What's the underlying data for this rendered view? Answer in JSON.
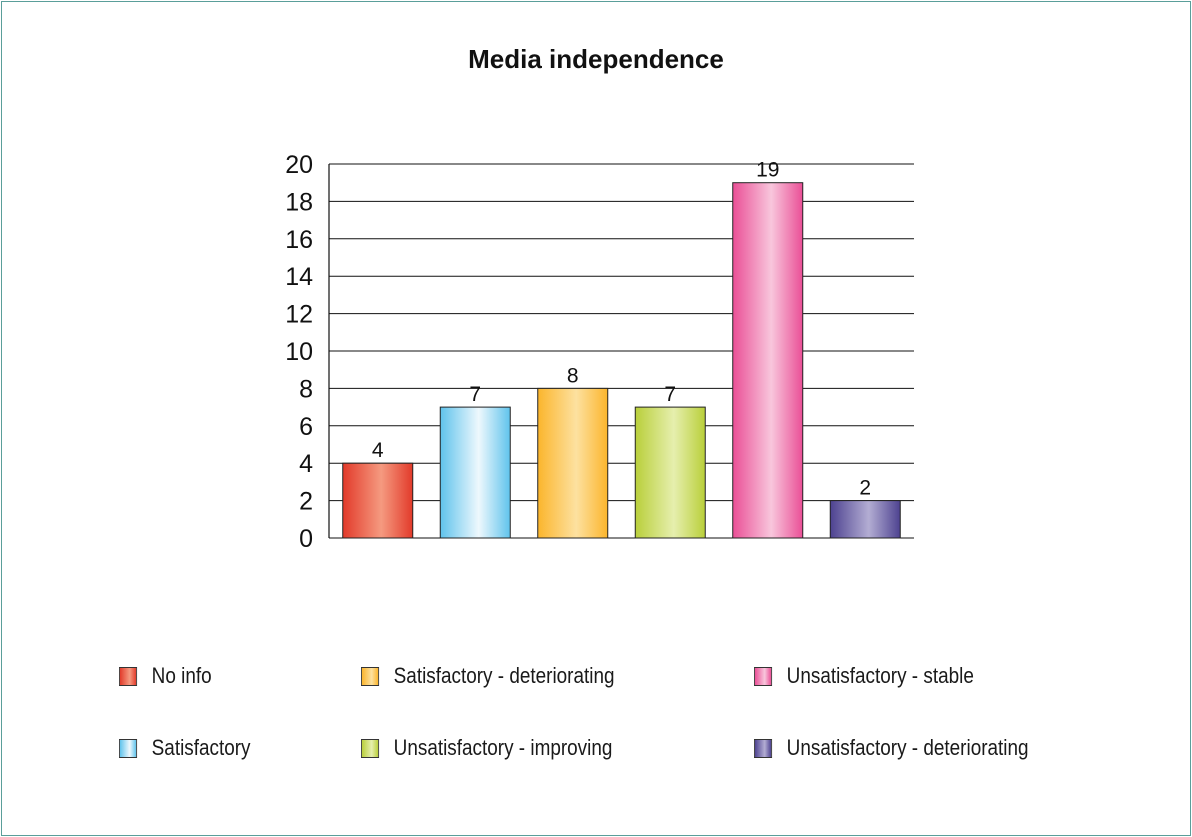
{
  "chart_data": {
    "type": "bar",
    "title": "Media independence",
    "xlabel": "",
    "ylabel": "",
    "ylim": [
      0,
      20
    ],
    "yticks": [
      0,
      2,
      4,
      6,
      8,
      10,
      12,
      14,
      16,
      18,
      20
    ],
    "grid": true,
    "legend_position": "bottom",
    "categories": [
      "No info",
      "Satisfactory",
      "Satisfactory - deteriorating",
      "Unsatisfactory - improving",
      "Unsatisfactory - stable",
      "Unsatisfactory - deteriorating"
    ],
    "values": [
      4,
      7,
      8,
      7,
      19,
      2
    ],
    "colors": [
      "#e23a2a",
      "#5fc3ec",
      "#fbb52c",
      "#b9cf3a",
      "#ea4f96",
      "#4d4290"
    ],
    "highlights": [
      "#f59a80",
      "#eef8fd",
      "#fde1a0",
      "#e6efae",
      "#f8c6dc",
      "#b3add3"
    ],
    "legend_order": [
      0,
      2,
      4,
      1,
      3,
      5
    ]
  }
}
